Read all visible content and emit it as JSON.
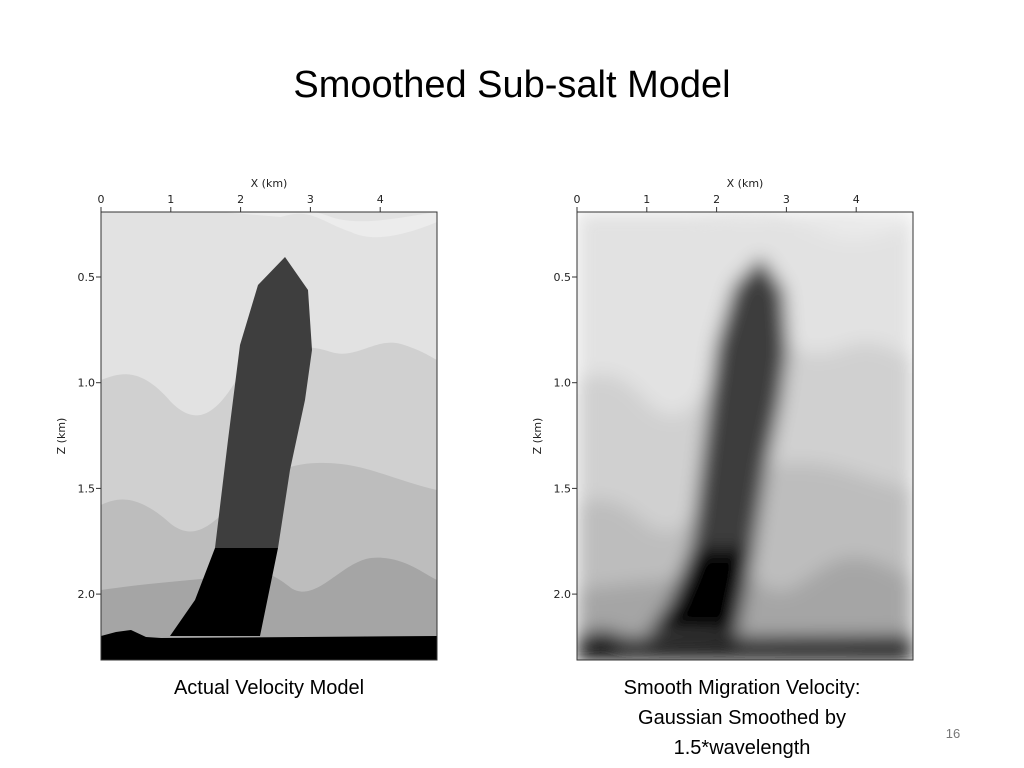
{
  "title": "Smoothed Sub-salt Model",
  "panels": [
    {
      "x_axis_title": "X (km)",
      "x_ticks": [
        "0",
        "1",
        "2",
        "3",
        "4"
      ],
      "y_axis_title": "Z (km)",
      "y_ticks": [
        "0.5",
        "1.0",
        "1.5",
        "2.0"
      ],
      "caption": [
        "Actual Velocity Model"
      ]
    },
    {
      "x_axis_title": "X (km)",
      "x_ticks": [
        "0",
        "1",
        "2",
        "3",
        "4"
      ],
      "y_axis_title": "Z (km)",
      "y_ticks": [
        "0.5",
        "1.0",
        "1.5",
        "2.0"
      ],
      "caption": [
        "Smooth Migration Velocity:",
        "Gaussian Smoothed by",
        "1.5*wavelength"
      ]
    }
  ],
  "page_number": "16"
}
